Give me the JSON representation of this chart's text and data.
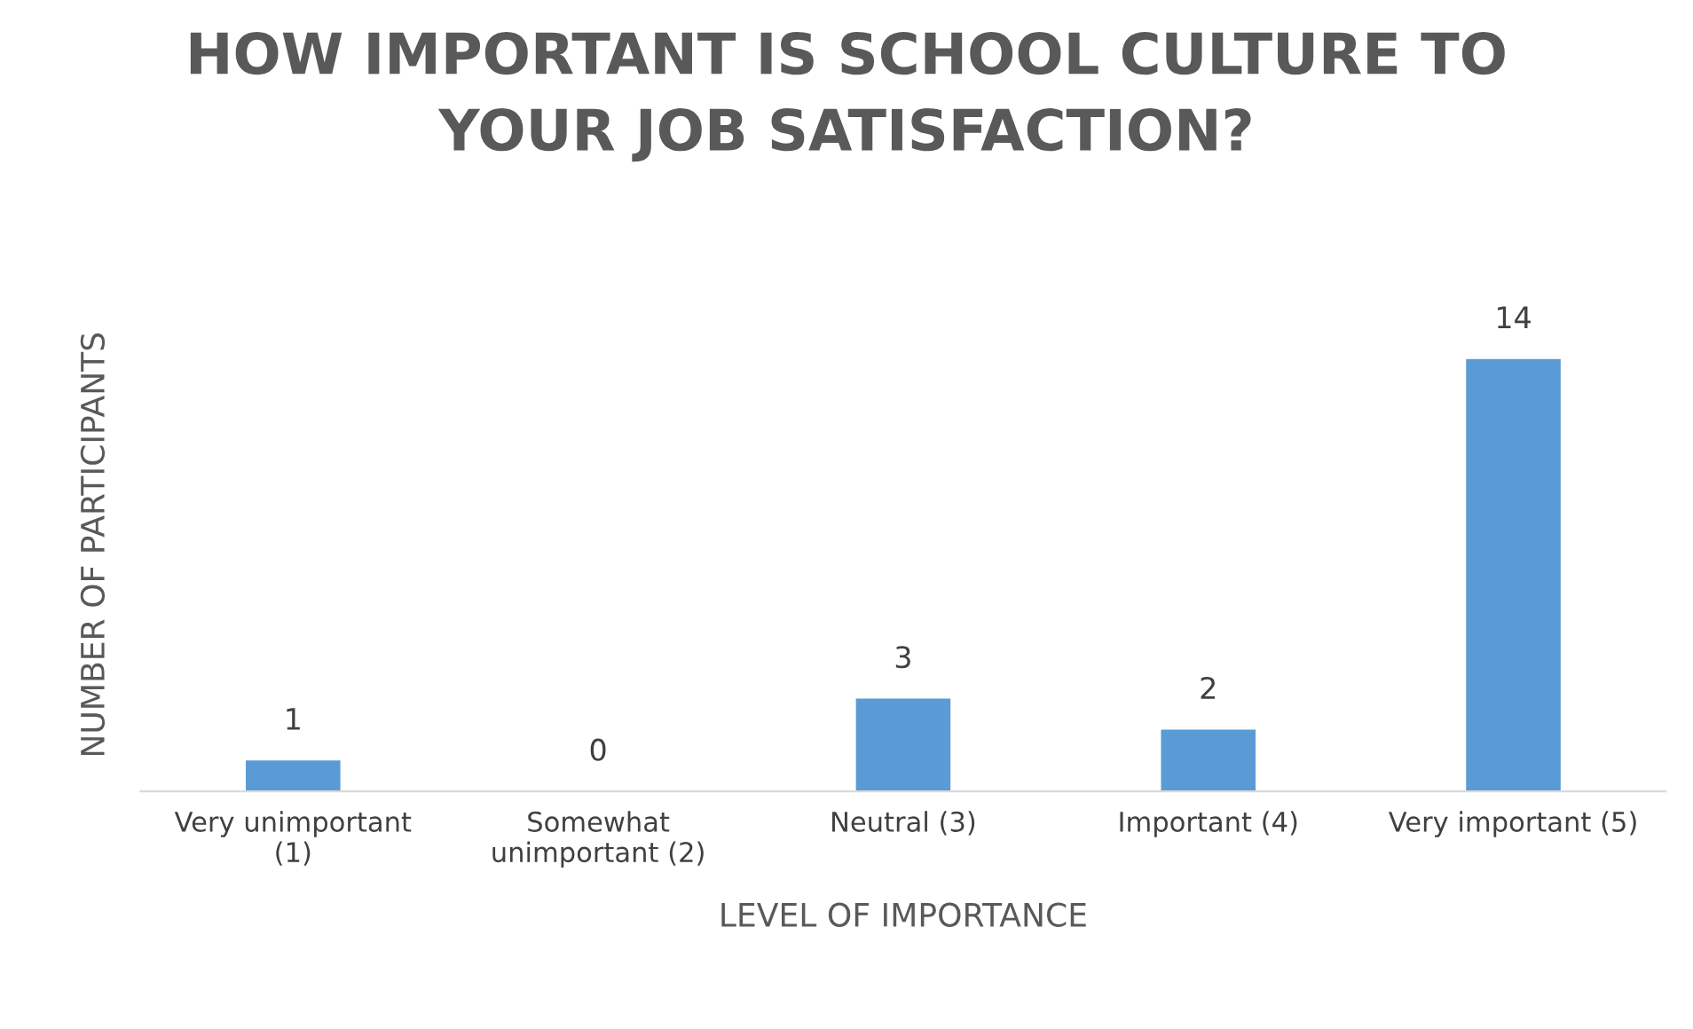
{
  "chart_data": {
    "type": "bar",
    "title": "HOW IMPORTANT IS SCHOOL CULTURE TO\nYOUR JOB SATISFACTION?",
    "xlabel": "LEVEL OF IMPORTANCE",
    "ylabel": "NUMBER OF PARTICIPANTS",
    "categories": [
      "Very unimportant\n(1)",
      "Somewhat\nunimportant (2)",
      "Neutral (3)",
      "Important (4)",
      "Very important (5)"
    ],
    "values": [
      1,
      0,
      3,
      2,
      14
    ],
    "color": "#5b9bd5",
    "data_labels": true,
    "tick_labels": "x",
    "grid": false,
    "legend": false
  }
}
